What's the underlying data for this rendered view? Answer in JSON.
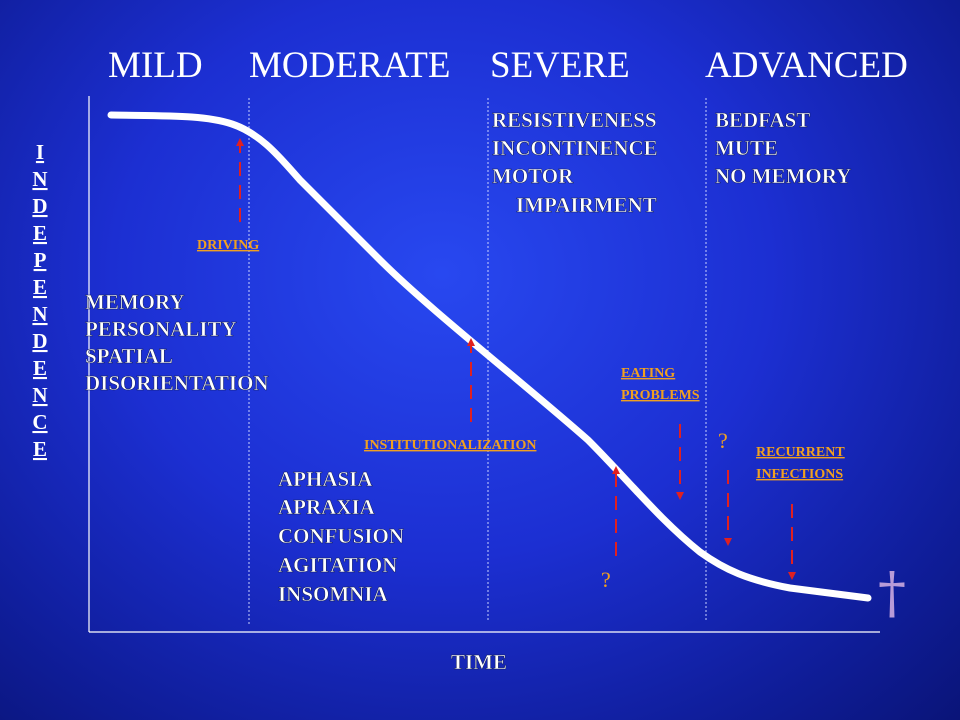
{
  "stages": [
    "MILD",
    "MODERATE",
    "SEVERE",
    "ADVANCED"
  ],
  "y_axis_letters": [
    "I",
    "N",
    "D",
    "E",
    "P",
    "E",
    "N",
    "D",
    "E",
    "N",
    "C",
    "E"
  ],
  "x_axis_label": "TIME",
  "symptom_groups": {
    "mild": [
      "MEMORY",
      "PERSONALITY",
      "SPATIAL",
      "DISORIENTATION"
    ],
    "moderate": [
      "APHASIA",
      "APRAXIA",
      "CONFUSION",
      "AGITATION",
      "INSOMNIA"
    ],
    "severe": [
      "RESISTIVENESS",
      "INCONTINENCE",
      "MOTOR",
      "IMPAIRMENT"
    ],
    "advanced": [
      "BEDFAST",
      "MUTE",
      "NO MEMORY"
    ]
  },
  "events": {
    "driving": "DRIVING",
    "institutionalization": "INSTITUTIONALIZATION",
    "eating": [
      "EATING",
      "PROBLEMS"
    ],
    "infections": [
      "RECURRENT",
      "INFECTIONS"
    ]
  },
  "question_mark": "?",
  "end_symbol": "†",
  "colors": {
    "background": "#1c2fd2",
    "curve": "#ffffff",
    "arrow": "#e02020",
    "event_text": "#f0a020"
  }
}
